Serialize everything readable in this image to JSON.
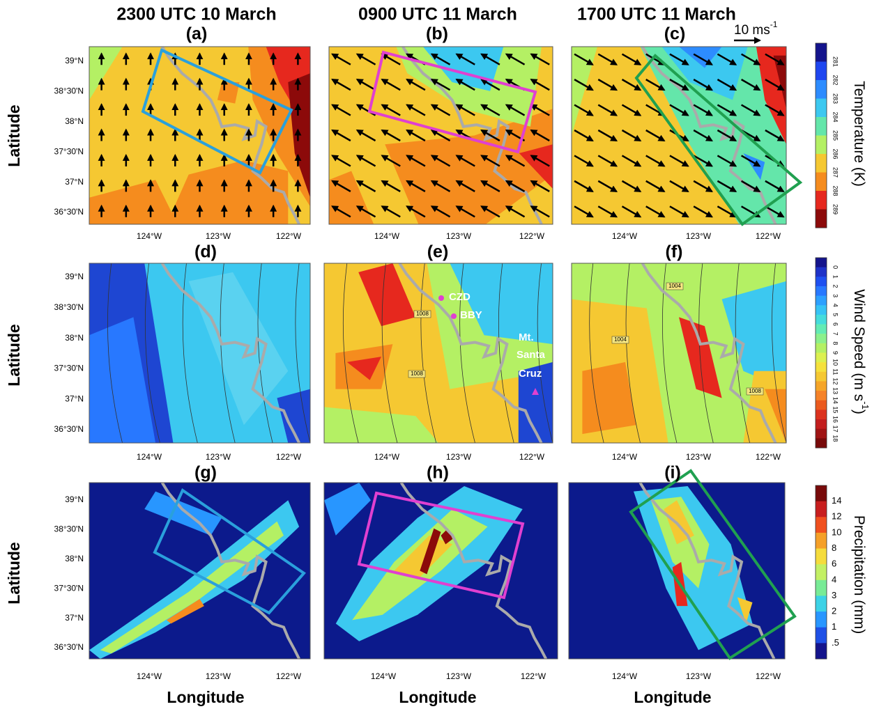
{
  "columns": [
    "2300 UTC 10 March",
    "0900 UTC 11 March",
    "1700 UTC 11 March"
  ],
  "panels": [
    "(a)",
    "(b)",
    "(c)",
    "(d)",
    "(e)",
    "(f)",
    "(g)",
    "(h)",
    "(i)"
  ],
  "y_axis_label": "Latitude",
  "x_axis_label": "Longitude",
  "lat_ticks": [
    "39°N",
    "38°30'N",
    "38°N",
    "37°30'N",
    "37°N",
    "36°30'N"
  ],
  "lon_ticks": [
    "124°W",
    "123°W",
    "122°W"
  ],
  "wind_scale": {
    "text": "10 ms",
    "sup": "-1"
  },
  "colorbars": [
    {
      "title": "Temperature (K)",
      "ticks": [
        281,
        282,
        283,
        284,
        285,
        286,
        287,
        288,
        289
      ]
    },
    {
      "title": "Wind Speed (m s",
      "title_sup": "-1",
      "title_end": ")",
      "ticks": [
        0,
        1,
        2,
        3,
        4,
        5,
        6,
        7,
        8,
        9,
        10,
        11,
        12,
        13,
        14,
        15,
        16,
        17,
        18
      ]
    },
    {
      "title": "Precipitation (mm)",
      "ticks": [
        14,
        12,
        10,
        8,
        6,
        4,
        3,
        2,
        1,
        ".5"
      ]
    }
  ],
  "stations": [
    "CZD",
    "BBY"
  ],
  "mountain": [
    "Mt.",
    "Santa",
    "Cruz"
  ],
  "isobar_labels": [
    "1008",
    "1008",
    "1004",
    "1004",
    "1008"
  ]
}
